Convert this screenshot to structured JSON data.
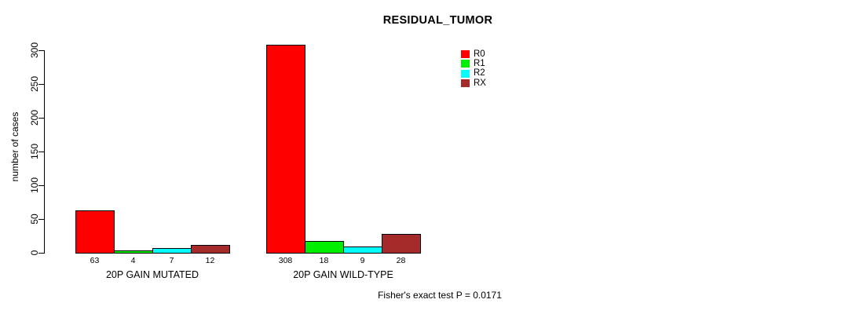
{
  "chart_data": {
    "type": "bar",
    "title": "RESIDUAL_TUMOR",
    "ylabel": "number of cases",
    "xlabel": "",
    "annotation": "Fisher's exact test P = 0.0171",
    "categories": [
      "20P GAIN MUTATED",
      "20P GAIN WILD-TYPE"
    ],
    "series": [
      {
        "name": "R0",
        "color": "#FF0000",
        "values": [
          63,
          308
        ]
      },
      {
        "name": "R1",
        "color": "#00EE00",
        "values": [
          4,
          18
        ]
      },
      {
        "name": "R2",
        "color": "#00FFFF",
        "values": [
          7,
          9
        ]
      },
      {
        "name": "RX",
        "color": "#A52A2A",
        "values": [
          12,
          28
        ]
      }
    ],
    "ylim": [
      0,
      300
    ],
    "yticks": [
      0,
      50,
      100,
      150,
      200,
      250,
      300
    ],
    "bar_value_labels": [
      [
        63,
        4,
        7,
        12
      ],
      [
        308,
        18,
        9,
        28
      ]
    ],
    "legend_position": "top-right",
    "grid": false,
    "background": "#FFFFFF"
  }
}
